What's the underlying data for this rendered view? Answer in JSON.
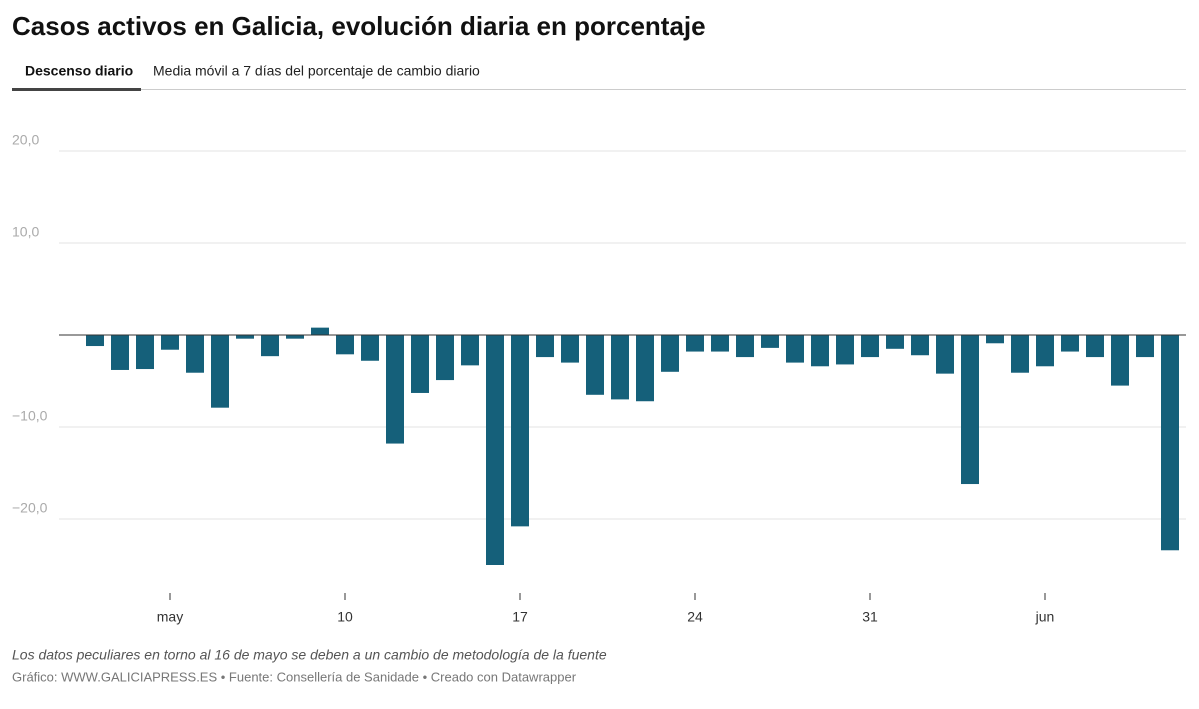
{
  "chart_data": {
    "type": "bar",
    "title": "Casos activos en Galicia, evolución diaria en porcentaje",
    "tabs": [
      "Descenso diario",
      "Media móvil a 7 días del porcentaje de cambio diario"
    ],
    "note": "Los datos peculiares en torno al 16 de mayo se deben a un cambio de metodología de la fuente",
    "footer": "Gráfico: WWW.GALICIAPRESS.ES • Fuente: Consellería de Sanidade • Creado con Datawrapper",
    "categories": [
      null,
      null,
      null,
      "may",
      null,
      null,
      null,
      null,
      null,
      null,
      "10",
      null,
      null,
      null,
      null,
      null,
      null,
      "17",
      null,
      null,
      null,
      null,
      null,
      null,
      "24",
      null,
      null,
      null,
      null,
      null,
      null,
      "31",
      null,
      null,
      null,
      null,
      null,
      null,
      "jun",
      null,
      null,
      null,
      null,
      null
    ],
    "values": [
      -1.2,
      -3.8,
      -3.7,
      -1.6,
      -4.1,
      -7.9,
      -0.4,
      -2.3,
      -0.4,
      0.8,
      -2.1,
      -2.8,
      -11.8,
      -6.3,
      -4.9,
      -3.3,
      -25.0,
      -20.8,
      -2.4,
      -3.0,
      -6.5,
      -7.0,
      -7.2,
      -4.0,
      -1.8,
      -1.8,
      -2.4,
      -1.4,
      -3.0,
      -3.4,
      -3.2,
      -2.4,
      -1.5,
      -2.2,
      -4.2,
      -16.2,
      -0.9,
      -4.1,
      -3.4,
      -1.8,
      -2.4,
      -5.5,
      -2.4,
      -23.4
    ],
    "color": "#15607a",
    "ylim": [
      -27.5,
      25
    ],
    "yticks": [
      {
        "value": 20,
        "label": "20,0"
      },
      {
        "value": 10,
        "label": "10,0"
      },
      {
        "value": -10,
        "label": "−10,0"
      },
      {
        "value": -20,
        "label": "−20,0"
      }
    ],
    "grid": true
  }
}
